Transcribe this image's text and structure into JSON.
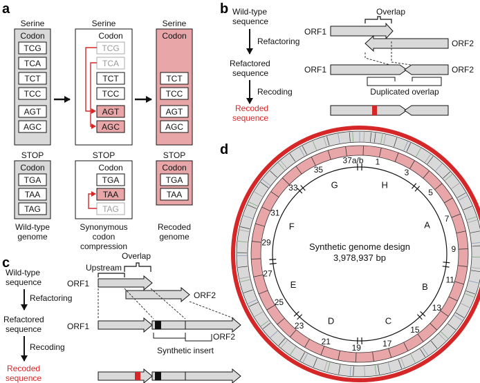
{
  "panel_letters": {
    "a": "a",
    "b": "b",
    "c": "c",
    "d": "d"
  },
  "colors": {
    "recoded_pink": "#e8a6a8",
    "arrow_red": "#d62728",
    "box_grey": "#d9d9d9",
    "ring_red": "#d62728"
  },
  "panel_a": {
    "serine_titles": [
      "Serine",
      "Serine",
      "Serine"
    ],
    "codon_header": "Codon",
    "serine_wild": [
      "TCG",
      "TCA",
      "TCT",
      "TCC",
      "AGT",
      "AGC"
    ],
    "serine_mid": [
      "TCG",
      "TCA",
      "TCT",
      "TCC",
      "AGT",
      "AGC"
    ],
    "serine_recoded": [
      "TCT",
      "TCC",
      "AGT",
      "AGC"
    ],
    "stop_titles": [
      "STOP",
      "STOP",
      "STOP"
    ],
    "stop_wild": [
      "TGA",
      "TAA",
      "TAG"
    ],
    "stop_mid": [
      "TGA",
      "TAA",
      "TAG"
    ],
    "stop_recoded": [
      "TGA",
      "TAA"
    ],
    "captions": {
      "wild": [
        "Wild-type",
        "genome"
      ],
      "mid": [
        "Synonymous",
        "codon",
        "compression"
      ],
      "recoded": [
        "Recoded",
        "genome"
      ]
    }
  },
  "panel_b": {
    "steps": [
      "Wild-type",
      "sequence",
      "Refactoring",
      "Refactored",
      "sequence",
      "Recoding",
      "Recoded",
      "sequence"
    ],
    "overlap": "Overlap",
    "orf1": "ORF1",
    "orf2": "ORF2",
    "dup": "Duplicated overlap"
  },
  "panel_c": {
    "steps": [
      "Wild-type",
      "sequence",
      "Refactoring",
      "Refactored",
      "sequence",
      "Recoding",
      "Recoded",
      "sequence"
    ],
    "overlap": "Overlap",
    "upstream": "Upstream",
    "orf1": "ORF1",
    "orf2": "ORF2",
    "insert": "Synthetic insert"
  },
  "panel_d": {
    "title": "Synthetic genome design",
    "size": "3,978,937 bp",
    "segments": [
      "A",
      "B",
      "C",
      "D",
      "E",
      "F",
      "G",
      "H"
    ],
    "fragments": [
      "1",
      "3",
      "5",
      "7",
      "9",
      "11",
      "13",
      "15",
      "17",
      "19",
      "21",
      "23",
      "25",
      "27",
      "29",
      "31",
      "33",
      "35",
      "37a/b"
    ]
  }
}
